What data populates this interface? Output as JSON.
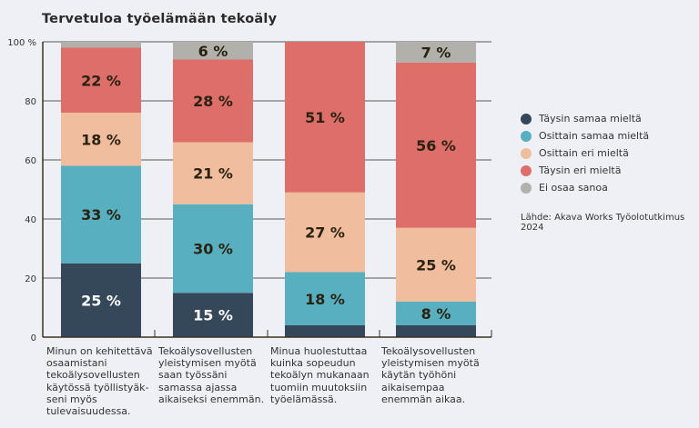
{
  "chart_data": {
    "type": "bar",
    "stacked": true,
    "title": "Tervetuloa työelämään tekoäly",
    "categories": [
      "Minun on kehitettävä\nosaamistani\ntekoälysovellusten\nkäytössä työllistyäk-\nseni myös\ntulevaisuudessa.",
      "Tekoälysovellusten\nyleistymisen myötä\nsaan työssäni\nsamassa ajassa\naikaiseksi enemmän.",
      "Minua huolestuttaa\nkuinka sopeudun\ntekoälyn mukanaan\ntuomiin muutoksiin\ntyöelämässä.",
      "Tekoälysovellusten\nyleistymisen myötä\nkäytän työhöni\naikaisempaa\nenemmän aikaa."
    ],
    "series": [
      {
        "name": "Täysin samaa mieltä",
        "color": "#34485a",
        "label_color": "#ffffff",
        "values": [
          25,
          15,
          4,
          4
        ],
        "labels": [
          "25 %",
          "15 %",
          "",
          ""
        ]
      },
      {
        "name": "Osittain samaa mieltä",
        "color": "#58afc0",
        "label_color": "#2a2210",
        "values": [
          33,
          30,
          18,
          8
        ],
        "labels": [
          "33 %",
          "30 %",
          "18 %",
          "8 %"
        ]
      },
      {
        "name": "Osittain eri mieltä",
        "color": "#f0bd9e",
        "label_color": "#2a2210",
        "values": [
          18,
          21,
          27,
          25
        ],
        "labels": [
          "18 %",
          "21 %",
          "27 %",
          "25 %"
        ]
      },
      {
        "name": "Täysin eri mieltä",
        "color": "#dd6e69",
        "label_color": "#2a2210",
        "values": [
          22,
          28,
          51,
          56
        ],
        "labels": [
          "22 %",
          "28 %",
          "51 %",
          "56 %"
        ]
      },
      {
        "name": "Ei osaa sanoa",
        "color": "#b1b0ab",
        "label_color": "#2a2210",
        "values": [
          2,
          6,
          0,
          7
        ],
        "labels": [
          "",
          "6 %",
          "",
          "7 %"
        ]
      }
    ],
    "yticks": [
      "0",
      "20",
      "40",
      "60",
      "80",
      "100 %"
    ],
    "ytick_values": [
      0,
      20,
      40,
      60,
      80,
      100
    ],
    "ylim": [
      0,
      100
    ],
    "grid": true,
    "legend": "right",
    "source": "Lähde: Akava Works Työolotutkimus 2024"
  }
}
